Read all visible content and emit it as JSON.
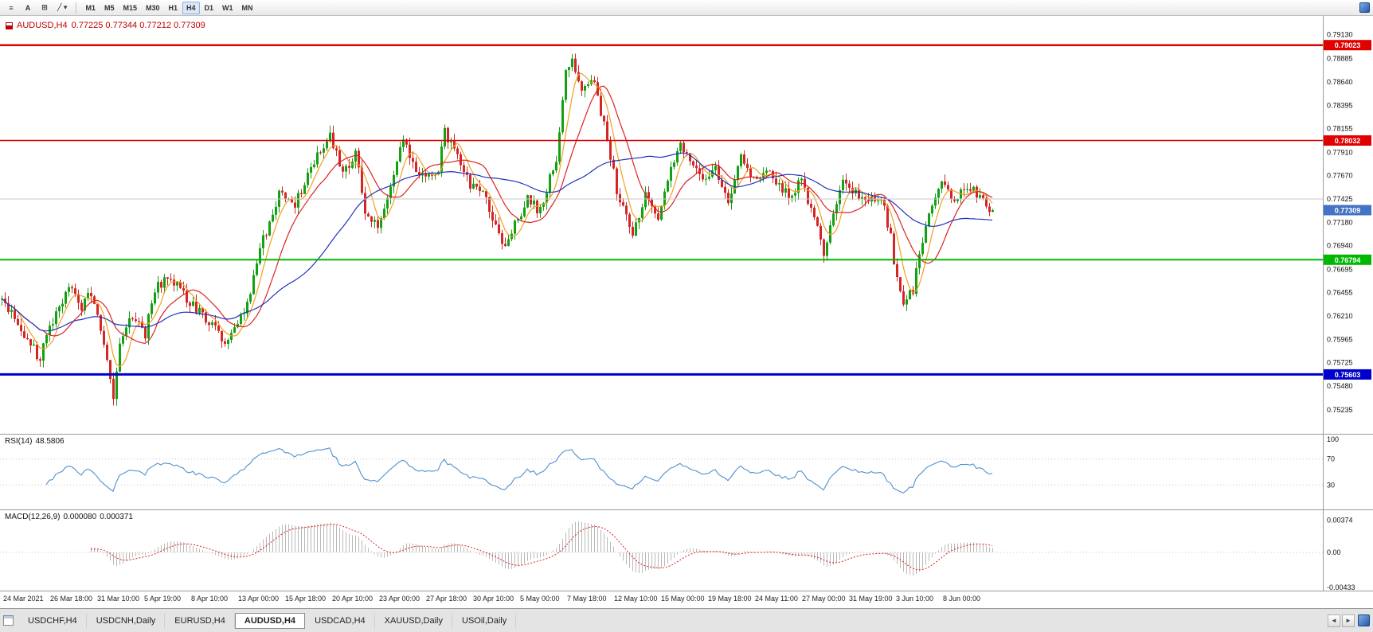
{
  "toolbar": {
    "tools": [
      {
        "name": "charts-list-icon",
        "glyph": "≡"
      },
      {
        "name": "text-tool-button",
        "glyph": "A"
      },
      {
        "name": "shapes-tool-button",
        "glyph": "⊞"
      },
      {
        "name": "draw-tool-button",
        "glyph": "╱ ▾"
      }
    ],
    "timeframes": [
      "M1",
      "M5",
      "M15",
      "M30",
      "H1",
      "H4",
      "D1",
      "W1",
      "MN"
    ],
    "active_timeframe": "H4"
  },
  "chart": {
    "title": "AUDUSD,H4",
    "ohlc_text": "0.77225 0.77344 0.77212 0.77309"
  },
  "rsi": {
    "label": "RSI(14)",
    "value": "48.5806",
    "axis_labels": [
      "100",
      "70",
      "30"
    ],
    "levels": [
      70,
      30
    ]
  },
  "macd": {
    "label": "MACD(12,26,9)",
    "value1": "0.000080",
    "value2": "0.000371",
    "axis_labels": [
      "0.00374",
      "0.00",
      "-0.00433"
    ]
  },
  "tabs": {
    "items": [
      "USDCHF,H4",
      "USDCNH,Daily",
      "EURUSD,H4",
      "AUDUSD,H4",
      "USDCAD,H4",
      "XAUUSD,Daily",
      "USOil,Daily"
    ],
    "active_index": 3
  },
  "chart_data": {
    "type": "candlestick",
    "symbol": "AUDUSD",
    "timeframe": "H4",
    "ohlc": {
      "open": 0.77225,
      "high": 0.77344,
      "low": 0.77212,
      "close": 0.77309
    },
    "current_bid": 0.77309,
    "bid_tag": {
      "label": "0.77309",
      "color": "#4472c4"
    },
    "axis_range": {
      "top": 0.7926,
      "bottom": 0.7511
    },
    "price_axis_labels": [
      "0.79130",
      "0.78885",
      "0.78640",
      "0.78395",
      "0.78155",
      "0.77910",
      "0.77670",
      "0.77425",
      "0.77180",
      "0.76940",
      "0.76695",
      "0.76455",
      "0.76210",
      "0.75965",
      "0.75725",
      "0.75480",
      "0.75235"
    ],
    "x_axis_labels": [
      "24 Mar 2021",
      "26 Mar 18:00",
      "31 Mar 10:00",
      "5 Apr 19:00",
      "8 Apr 10:00",
      "13 Apr 00:00",
      "15 Apr 18:00",
      "20 Apr 10:00",
      "23 Apr 00:00",
      "27 Apr 18:00",
      "30 Apr 10:00",
      "5 May 00:00",
      "7 May 18:00",
      "12 May 10:00",
      "15 May 00:00",
      "19 May 18:00",
      "24 May 11:00",
      "27 May 00:00",
      "31 May 19:00",
      "3 Jun 10:00",
      "8 Jun 00:00"
    ],
    "levels": [
      {
        "price": 0.79023,
        "label": "0.79023",
        "color": "#e00000",
        "width": 2.5,
        "tag": true
      },
      {
        "price": 0.78032,
        "label": "0.78032",
        "color": "#e00000",
        "width": 1.5,
        "tag": true
      },
      {
        "price": 0.77425,
        "label": "",
        "color": "#c8c8c8",
        "width": 1,
        "tag": false
      },
      {
        "price": 0.76794,
        "label": "0.76794",
        "color": "#00b800",
        "width": 2,
        "tag": true
      },
      {
        "price": 0.75603,
        "label": "0.75603",
        "color": "#0000cc",
        "width": 3,
        "tag": true
      }
    ],
    "colors": {
      "up": "#13a113",
      "down": "#d32626",
      "ma_fast": "#f0a020",
      "ma_mid": "#dd2222",
      "ma_slow": "#2233bb",
      "rsi": "#5090d0",
      "macd_hist": "#b8b8b8",
      "macd_signal": "#dd2222"
    },
    "moving_averages": [
      {
        "period": 6,
        "color_key": "ma_fast"
      },
      {
        "period": 14,
        "color_key": "ma_mid"
      },
      {
        "period": 40,
        "color_key": "ma_slow"
      }
    ],
    "n_bars": 312,
    "series_waypoints": [
      [
        0,
        0.7638
      ],
      [
        7,
        0.7602
      ],
      [
        12,
        0.7576
      ],
      [
        15,
        0.761
      ],
      [
        21,
        0.7652
      ],
      [
        25,
        0.763
      ],
      [
        28,
        0.7646
      ],
      [
        32,
        0.7592
      ],
      [
        34,
        0.7556
      ],
      [
        35,
        0.754
      ],
      [
        37,
        0.7588
      ],
      [
        41,
        0.7622
      ],
      [
        45,
        0.7602
      ],
      [
        48,
        0.765
      ],
      [
        53,
        0.7662
      ],
      [
        57,
        0.7642
      ],
      [
        63,
        0.7622
      ],
      [
        67,
        0.7608
      ],
      [
        70,
        0.759
      ],
      [
        74,
        0.7618
      ],
      [
        77,
        0.7632
      ],
      [
        82,
        0.77
      ],
      [
        87,
        0.7746
      ],
      [
        92,
        0.7736
      ],
      [
        97,
        0.7776
      ],
      [
        103,
        0.7808
      ],
      [
        107,
        0.777
      ],
      [
        111,
        0.779
      ],
      [
        114,
        0.7732
      ],
      [
        118,
        0.7716
      ],
      [
        122,
        0.7756
      ],
      [
        126,
        0.7804
      ],
      [
        129,
        0.778
      ],
      [
        133,
        0.7762
      ],
      [
        137,
        0.7772
      ],
      [
        139,
        0.7812
      ],
      [
        143,
        0.779
      ],
      [
        147,
        0.7756
      ],
      [
        151,
        0.775
      ],
      [
        155,
        0.7716
      ],
      [
        158,
        0.7692
      ],
      [
        162,
        0.7722
      ],
      [
        165,
        0.7742
      ],
      [
        169,
        0.773
      ],
      [
        174,
        0.7786
      ],
      [
        177,
        0.7876
      ],
      [
        179,
        0.7888
      ],
      [
        182,
        0.7856
      ],
      [
        186,
        0.7862
      ],
      [
        189,
        0.782
      ],
      [
        193,
        0.7752
      ],
      [
        196,
        0.7722
      ],
      [
        198,
        0.7702
      ],
      [
        202,
        0.7746
      ],
      [
        206,
        0.7726
      ],
      [
        210,
        0.7776
      ],
      [
        213,
        0.78
      ],
      [
        217,
        0.7776
      ],
      [
        221,
        0.7762
      ],
      [
        224,
        0.7772
      ],
      [
        228,
        0.7742
      ],
      [
        232,
        0.7786
      ],
      [
        236,
        0.7762
      ],
      [
        239,
        0.7772
      ],
      [
        243,
        0.7762
      ],
      [
        247,
        0.7746
      ],
      [
        251,
        0.7762
      ],
      [
        253,
        0.7742
      ],
      [
        256,
        0.7716
      ],
      [
        258,
        0.7688
      ],
      [
        261,
        0.7732
      ],
      [
        264,
        0.7762
      ],
      [
        268,
        0.7748
      ],
      [
        272,
        0.7738
      ],
      [
        276,
        0.7744
      ],
      [
        279,
        0.7702
      ],
      [
        281,
        0.7658
      ],
      [
        283,
        0.7638
      ],
      [
        286,
        0.7648
      ],
      [
        289,
        0.7702
      ],
      [
        292,
        0.774
      ],
      [
        295,
        0.7758
      ],
      [
        299,
        0.7744
      ],
      [
        303,
        0.7758
      ],
      [
        307,
        0.7742
      ],
      [
        311,
        0.77309
      ]
    ],
    "spikes": {
      "low_bar": 35,
      "low_price": 0.7528,
      "high_bar": 179,
      "high_price": 0.7893
    }
  }
}
